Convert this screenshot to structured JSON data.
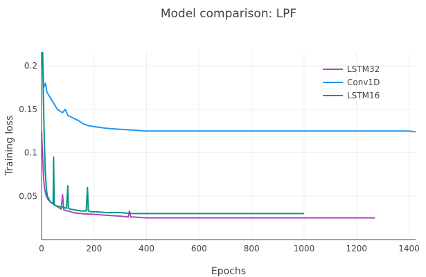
{
  "chart_data": {
    "type": "line",
    "title": "Model comparison: LPF",
    "xlabel": "Epochs",
    "ylabel": "Training loss",
    "xlim": [
      0,
      1425
    ],
    "ylim": [
      0.0,
      0.216
    ],
    "x_ticks": [
      0,
      200,
      400,
      600,
      800,
      1000,
      1200,
      1400
    ],
    "y_ticks": [
      0.05,
      0.1,
      0.15,
      0.2
    ],
    "x_tick_labels": [
      "0",
      "200",
      "400",
      "600",
      "800",
      "1000",
      "1200",
      "1400"
    ],
    "y_tick_labels": [
      "0.05",
      "0.1",
      "0.15",
      "0.2"
    ],
    "grid": true,
    "legend_position": "top-right",
    "series": [
      {
        "name": "LSTM32",
        "color": "#ab47bc",
        "x": [
          0,
          2,
          5,
          8,
          12,
          18,
          25,
          35,
          50,
          65,
          75,
          80,
          85,
          100,
          120,
          150,
          200,
          250,
          300,
          330,
          335,
          340,
          350,
          400,
          500,
          600,
          700,
          800,
          900,
          1000,
          1100,
          1200,
          1270
        ],
        "y": [
          0.125,
          0.11,
          0.09,
          0.07,
          0.058,
          0.05,
          0.046,
          0.043,
          0.04,
          0.037,
          0.035,
          0.052,
          0.034,
          0.033,
          0.031,
          0.03,
          0.029,
          0.028,
          0.027,
          0.026,
          0.033,
          0.026,
          0.026,
          0.025,
          0.025,
          0.025,
          0.025,
          0.025,
          0.025,
          0.025,
          0.025,
          0.025,
          0.025
        ]
      },
      {
        "name": "Conv1D",
        "color": "#2196f3",
        "x": [
          0,
          3,
          8,
          15,
          20,
          30,
          40,
          50,
          60,
          70,
          80,
          90,
          100,
          120,
          140,
          160,
          180,
          200,
          250,
          300,
          350,
          400,
          500,
          600,
          700,
          800,
          900,
          1000,
          1100,
          1200,
          1300,
          1400,
          1425
        ],
        "y": [
          0.2,
          0.215,
          0.175,
          0.18,
          0.17,
          0.165,
          0.16,
          0.155,
          0.15,
          0.148,
          0.146,
          0.15,
          0.143,
          0.14,
          0.137,
          0.133,
          0.131,
          0.13,
          0.128,
          0.127,
          0.126,
          0.125,
          0.125,
          0.125,
          0.125,
          0.125,
          0.125,
          0.125,
          0.125,
          0.125,
          0.125,
          0.125,
          0.124
        ]
      },
      {
        "name": "LSTM16",
        "color": "#009688",
        "x": [
          0,
          2,
          4,
          6,
          8,
          10,
          14,
          18,
          22,
          26,
          30,
          35,
          40,
          44,
          46,
          48,
          55,
          70,
          85,
          95,
          100,
          102,
          110,
          130,
          150,
          170,
          175,
          178,
          190,
          210,
          250,
          300,
          350,
          400,
          500,
          600,
          700,
          800,
          900,
          1000
        ],
        "y": [
          0.21,
          0.2,
          0.22,
          0.18,
          0.15,
          0.12,
          0.08,
          0.06,
          0.05,
          0.048,
          0.045,
          0.043,
          0.042,
          0.041,
          0.095,
          0.04,
          0.039,
          0.038,
          0.037,
          0.036,
          0.062,
          0.036,
          0.035,
          0.034,
          0.033,
          0.033,
          0.06,
          0.033,
          0.032,
          0.032,
          0.031,
          0.031,
          0.03,
          0.03,
          0.03,
          0.03,
          0.03,
          0.03,
          0.03,
          0.03
        ]
      }
    ]
  }
}
